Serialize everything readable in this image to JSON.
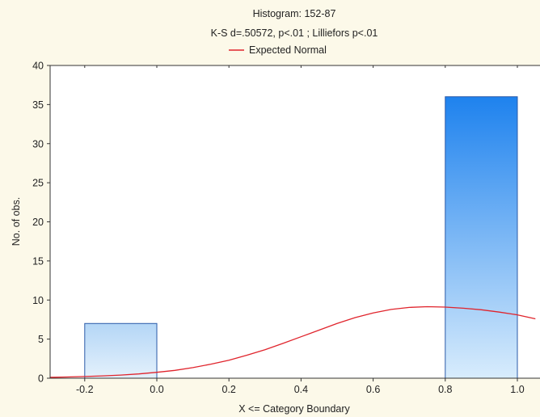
{
  "chart_data": {
    "type": "bar",
    "title": "Histogram: 152-87",
    "subtitle": "K-S d=.50572, p<.01 ; Lilliefors p<.01",
    "xlabel": "X <= Category Boundary",
    "ylabel": "No. of obs.",
    "legend": {
      "position": "top-center",
      "entries": [
        "Expected Normal"
      ]
    },
    "xlim": [
      -0.3,
      1.05
    ],
    "ylim": [
      0,
      40
    ],
    "x_ticks": [
      -0.2,
      0.0,
      0.2,
      0.4,
      0.6,
      0.8,
      1.0
    ],
    "x_tick_labels": [
      "-0.2",
      "0.0",
      "0.2",
      "0.4",
      "0.6",
      "0.8",
      "1.0"
    ],
    "y_ticks": [
      0,
      5,
      10,
      15,
      20,
      25,
      30,
      35,
      40
    ],
    "y_tick_labels": [
      "0",
      "5",
      "10",
      "15",
      "20",
      "25",
      "30",
      "35",
      "40"
    ],
    "bars": [
      {
        "x0": -0.2,
        "x1": 0.0,
        "value": 7
      },
      {
        "x0": 0.8,
        "x1": 1.0,
        "value": 36
      }
    ],
    "series": [
      {
        "name": "Expected Normal",
        "x": [
          -0.3,
          -0.25,
          -0.2,
          -0.15,
          -0.1,
          -0.05,
          0.0,
          0.05,
          0.1,
          0.15,
          0.2,
          0.25,
          0.3,
          0.35,
          0.4,
          0.45,
          0.5,
          0.55,
          0.6,
          0.65,
          0.7,
          0.75,
          0.8,
          0.85,
          0.9,
          0.95,
          1.0,
          1.05
        ],
        "values": [
          0.1,
          0.15,
          0.22,
          0.3,
          0.4,
          0.55,
          0.75,
          1.0,
          1.35,
          1.8,
          2.3,
          2.95,
          3.65,
          4.45,
          5.3,
          6.15,
          7.0,
          7.75,
          8.35,
          8.8,
          9.05,
          9.15,
          9.1,
          8.95,
          8.75,
          8.45,
          8.1,
          7.6
        ]
      }
    ],
    "grid": false,
    "colors": {
      "background": "#fcf9e9",
      "plot_background": "#ffffff",
      "bar_top": "#1e82ee",
      "bar_bottom": "#d8ecfc",
      "bar_small_top": "#b4d6f6",
      "bar_stroke": "#2a5aa8",
      "curve": "#e0242c",
      "axis": "#333333"
    }
  }
}
